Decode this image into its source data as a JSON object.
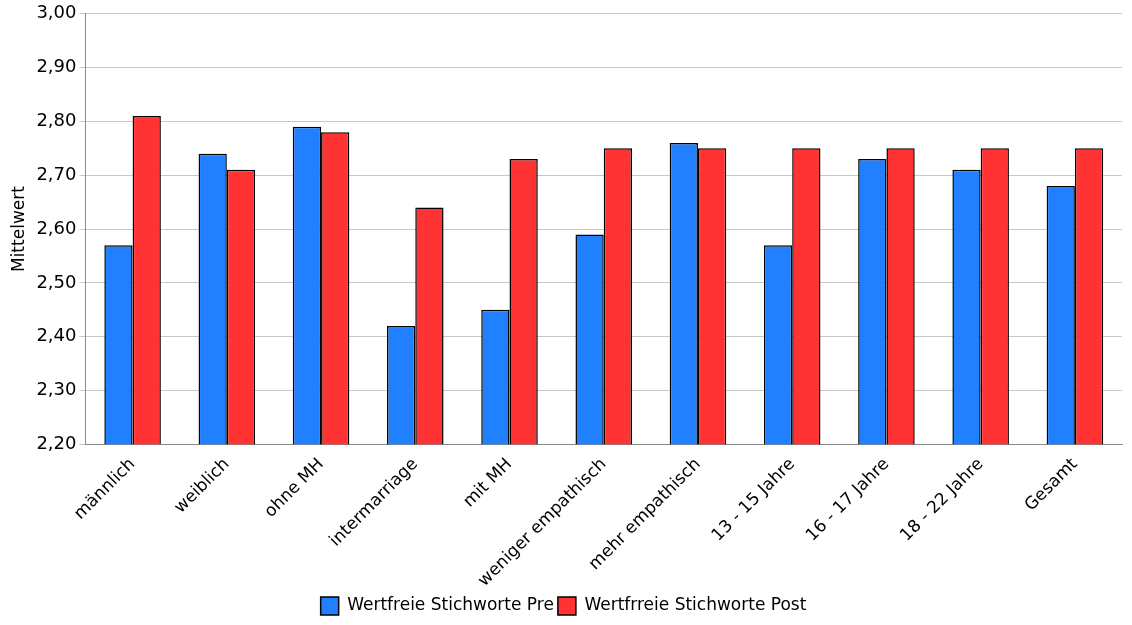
{
  "chart_data": {
    "type": "bar",
    "ylabel": "Mittelwert",
    "categories": [
      "männlich",
      "weiblich",
      "ohne MH",
      "intermarriage",
      "mit MH",
      "weniger empathisch",
      "mehr empathisch",
      "13 - 15 Jahre",
      "16 - 17 Jahre",
      "18 - 22 Jahre",
      "Gesamt"
    ],
    "series": [
      {
        "name": "Wertfreie Stichworte Pre",
        "color": "#2080ff",
        "values": [
          2.57,
          2.74,
          2.79,
          2.42,
          2.45,
          2.59,
          2.76,
          2.57,
          2.73,
          2.71,
          2.68
        ]
      },
      {
        "name": "Wertfrreie Stichworte Post",
        "color": "#ff3333",
        "values": [
          2.81,
          2.71,
          2.78,
          2.64,
          2.73,
          2.75,
          2.75,
          2.75,
          2.75,
          2.75,
          2.75
        ]
      }
    ],
    "ylim": [
      2.2,
      3.0
    ],
    "yticks": [
      {
        "value": 2.2,
        "label": "2,20"
      },
      {
        "value": 2.3,
        "label": "2,30"
      },
      {
        "value": 2.4,
        "label": "2,40"
      },
      {
        "value": 2.5,
        "label": "2,50"
      },
      {
        "value": 2.6,
        "label": "2,60"
      },
      {
        "value": 2.7,
        "label": "2,70"
      },
      {
        "value": 2.8,
        "label": "2,80"
      },
      {
        "value": 2.9,
        "label": "2,90"
      },
      {
        "value": 3.0,
        "label": "3,00"
      }
    ],
    "grid": "y",
    "legend": "bottom"
  }
}
